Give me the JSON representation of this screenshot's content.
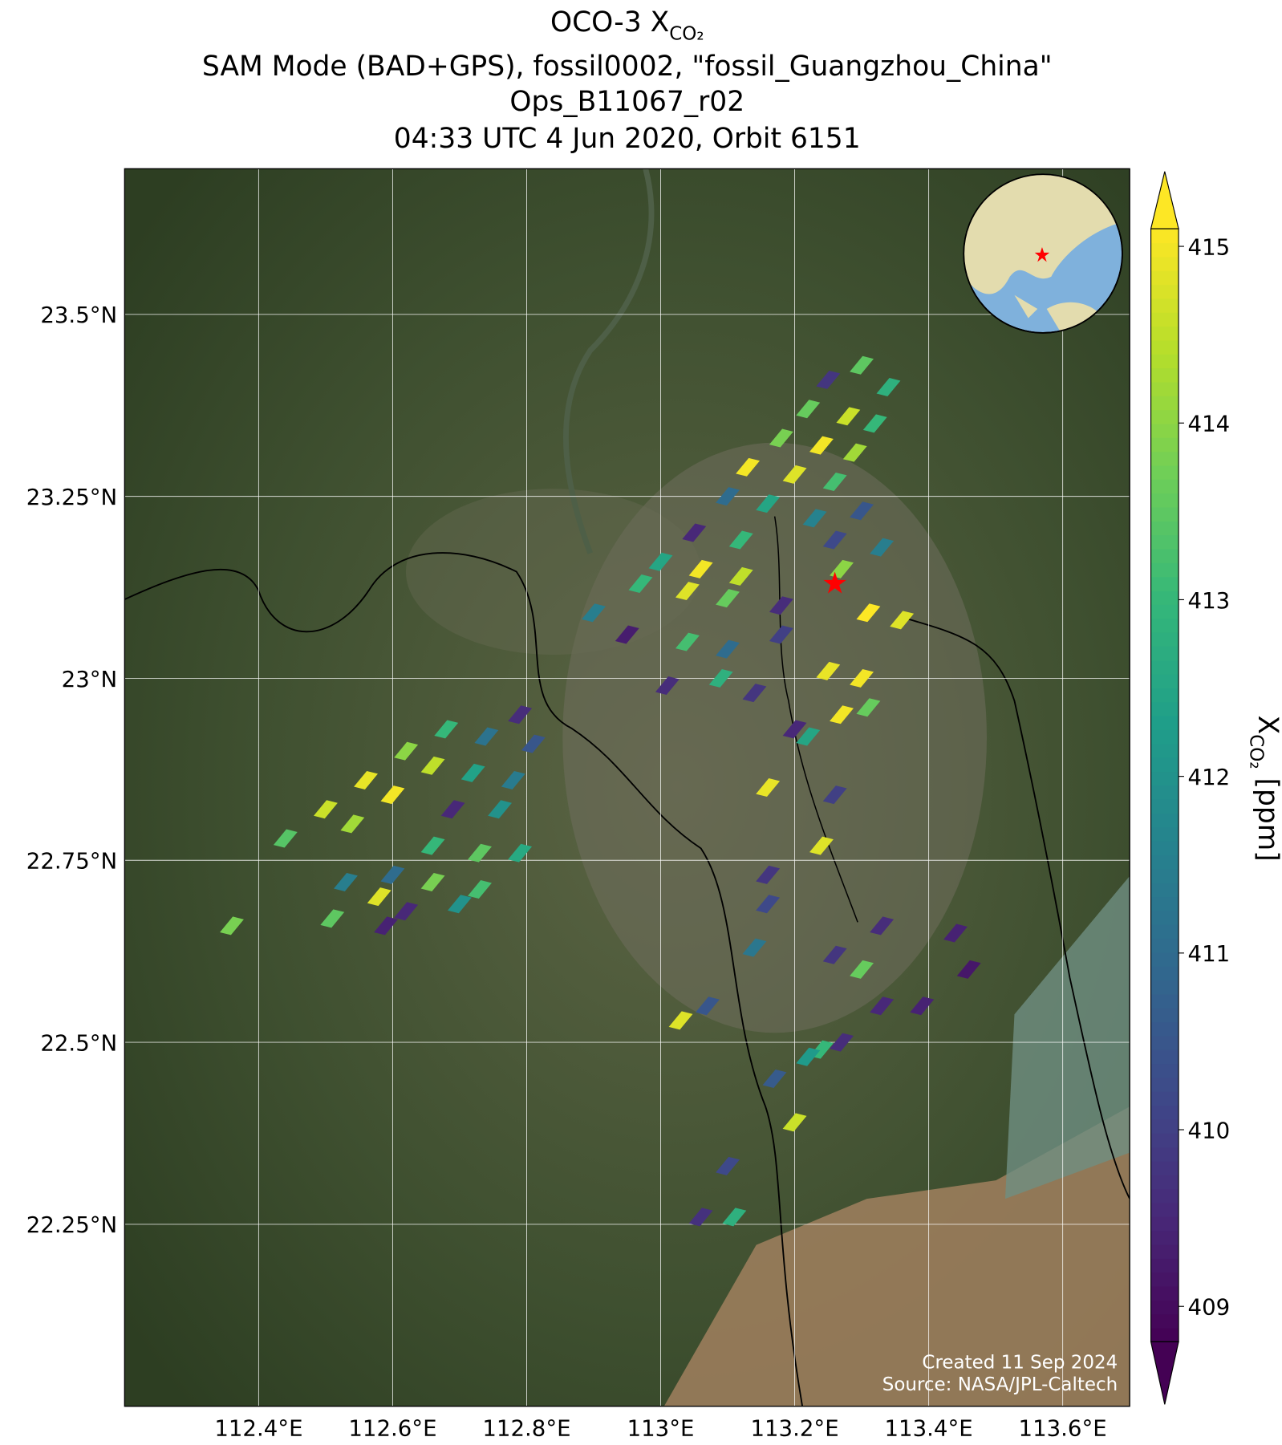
{
  "chart_data": {
    "type": "map",
    "title_prefix": "OCO-3 X",
    "title_subscript": "CO₂",
    "title_lines": [
      "SAM Mode (BAD+GPS), fossil0002, \"fossil_Guangzhou_China\"",
      "Ops_B11067_r02",
      "04:33 UTC 4 Jun 2020, Orbit 6151"
    ],
    "xlim": [
      112.2,
      113.7
    ],
    "ylim": [
      22.0,
      23.7
    ],
    "xticks": [
      {
        "value": 112.4,
        "label": "112.4°E"
      },
      {
        "value": 112.6,
        "label": "112.6°E"
      },
      {
        "value": 112.8,
        "label": "112.8°E"
      },
      {
        "value": 113.0,
        "label": "113°E"
      },
      {
        "value": 113.2,
        "label": "113.2°E"
      },
      {
        "value": 113.4,
        "label": "113.4°E"
      },
      {
        "value": 113.6,
        "label": "113.6°E"
      }
    ],
    "yticks": [
      {
        "value": 22.25,
        "label": "22.25°N"
      },
      {
        "value": 22.5,
        "label": "22.5°N"
      },
      {
        "value": 22.75,
        "label": "22.75°N"
      },
      {
        "value": 23.0,
        "label": "23°N"
      },
      {
        "value": 23.25,
        "label": "23.25°N"
      },
      {
        "value": 23.5,
        "label": "23.5°N"
      }
    ],
    "grid": true,
    "colormap": "viridis",
    "clim": [
      408.8,
      415.1
    ],
    "cticks": [
      409,
      410,
      411,
      412,
      413,
      414,
      415
    ],
    "colorbar_label_prefix": "X",
    "colorbar_label_subscript": "CO₂",
    "colorbar_label_suffix": " [ppm]",
    "target": {
      "lon": 113.26,
      "lat": 23.13
    },
    "credits": [
      "Created 11 Sep 2024",
      "Source: NASA/JPL-Caltech"
    ],
    "soundings": [
      {
        "lon": 113.3,
        "lat": 23.43,
        "xco2": 413.5
      },
      {
        "lon": 113.25,
        "lat": 23.41,
        "xco2": 409.8
      },
      {
        "lon": 113.34,
        "lat": 23.4,
        "xco2": 412.8
      },
      {
        "lon": 113.22,
        "lat": 23.37,
        "xco2": 413.6
      },
      {
        "lon": 113.28,
        "lat": 23.36,
        "xco2": 414.6
      },
      {
        "lon": 113.32,
        "lat": 23.35,
        "xco2": 413.0
      },
      {
        "lon": 113.18,
        "lat": 23.33,
        "xco2": 413.8
      },
      {
        "lon": 113.24,
        "lat": 23.32,
        "xco2": 415.0
      },
      {
        "lon": 113.29,
        "lat": 23.31,
        "xco2": 414.2
      },
      {
        "lon": 113.13,
        "lat": 23.29,
        "xco2": 415.0
      },
      {
        "lon": 113.2,
        "lat": 23.28,
        "xco2": 414.8
      },
      {
        "lon": 113.26,
        "lat": 23.27,
        "xco2": 413.2
      },
      {
        "lon": 113.1,
        "lat": 23.25,
        "xco2": 411.0
      },
      {
        "lon": 113.16,
        "lat": 23.24,
        "xco2": 412.5
      },
      {
        "lon": 113.23,
        "lat": 23.22,
        "xco2": 411.6
      },
      {
        "lon": 113.3,
        "lat": 23.23,
        "xco2": 410.5
      },
      {
        "lon": 113.05,
        "lat": 23.2,
        "xco2": 409.5
      },
      {
        "lon": 113.12,
        "lat": 23.19,
        "xco2": 413.0
      },
      {
        "lon": 113.26,
        "lat": 23.19,
        "xco2": 410.2
      },
      {
        "lon": 113.33,
        "lat": 23.18,
        "xco2": 411.5
      },
      {
        "lon": 113.0,
        "lat": 23.16,
        "xco2": 412.5
      },
      {
        "lon": 113.06,
        "lat": 23.15,
        "xco2": 415.0
      },
      {
        "lon": 113.12,
        "lat": 23.14,
        "xco2": 414.5
      },
      {
        "lon": 113.27,
        "lat": 23.15,
        "xco2": 414.0
      },
      {
        "lon": 112.97,
        "lat": 23.13,
        "xco2": 413.0
      },
      {
        "lon": 113.04,
        "lat": 23.12,
        "xco2": 414.8
      },
      {
        "lon": 113.1,
        "lat": 23.11,
        "xco2": 413.6
      },
      {
        "lon": 113.18,
        "lat": 23.1,
        "xco2": 409.6
      },
      {
        "lon": 113.31,
        "lat": 23.09,
        "xco2": 415.1
      },
      {
        "lon": 113.36,
        "lat": 23.08,
        "xco2": 414.8
      },
      {
        "lon": 112.9,
        "lat": 23.09,
        "xco2": 411.5
      },
      {
        "lon": 112.95,
        "lat": 23.06,
        "xco2": 409.3
      },
      {
        "lon": 113.04,
        "lat": 23.05,
        "xco2": 413.2
      },
      {
        "lon": 113.1,
        "lat": 23.04,
        "xco2": 411.0
      },
      {
        "lon": 113.18,
        "lat": 23.06,
        "xco2": 410.0
      },
      {
        "lon": 113.25,
        "lat": 23.01,
        "xco2": 414.9
      },
      {
        "lon": 113.3,
        "lat": 23.0,
        "xco2": 415.0
      },
      {
        "lon": 113.01,
        "lat": 22.99,
        "xco2": 409.6
      },
      {
        "lon": 113.09,
        "lat": 23.0,
        "xco2": 412.8
      },
      {
        "lon": 113.14,
        "lat": 22.98,
        "xco2": 409.8
      },
      {
        "lon": 113.27,
        "lat": 22.95,
        "xco2": 415.0
      },
      {
        "lon": 113.31,
        "lat": 22.96,
        "xco2": 413.6
      },
      {
        "lon": 113.2,
        "lat": 22.93,
        "xco2": 409.5
      },
      {
        "lon": 113.22,
        "lat": 22.92,
        "xco2": 412.5
      },
      {
        "lon": 113.16,
        "lat": 22.85,
        "xco2": 414.9
      },
      {
        "lon": 113.26,
        "lat": 22.84,
        "xco2": 410.0
      },
      {
        "lon": 113.24,
        "lat": 22.77,
        "xco2": 414.8
      },
      {
        "lon": 113.16,
        "lat": 22.73,
        "xco2": 409.8
      },
      {
        "lon": 113.16,
        "lat": 22.69,
        "xco2": 410.2
      },
      {
        "lon": 112.44,
        "lat": 22.78,
        "xco2": 413.4
      },
      {
        "lon": 112.5,
        "lat": 22.82,
        "xco2": 414.6
      },
      {
        "lon": 112.56,
        "lat": 22.86,
        "xco2": 414.9
      },
      {
        "lon": 112.62,
        "lat": 22.9,
        "xco2": 414.0
      },
      {
        "lon": 112.68,
        "lat": 22.93,
        "xco2": 413.0
      },
      {
        "lon": 112.54,
        "lat": 22.8,
        "xco2": 414.2
      },
      {
        "lon": 112.6,
        "lat": 22.84,
        "xco2": 415.0
      },
      {
        "lon": 112.66,
        "lat": 22.88,
        "xco2": 414.5
      },
      {
        "lon": 112.74,
        "lat": 22.92,
        "xco2": 411.2
      },
      {
        "lon": 112.79,
        "lat": 22.95,
        "xco2": 409.6
      },
      {
        "lon": 112.72,
        "lat": 22.87,
        "xco2": 412.4
      },
      {
        "lon": 112.78,
        "lat": 22.86,
        "xco2": 411.4
      },
      {
        "lon": 112.69,
        "lat": 22.82,
        "xco2": 409.5
      },
      {
        "lon": 112.76,
        "lat": 22.82,
        "xco2": 412.0
      },
      {
        "lon": 112.81,
        "lat": 22.91,
        "xco2": 410.5
      },
      {
        "lon": 112.66,
        "lat": 22.77,
        "xco2": 413.0
      },
      {
        "lon": 112.73,
        "lat": 22.76,
        "xco2": 413.5
      },
      {
        "lon": 112.79,
        "lat": 22.76,
        "xco2": 412.6
      },
      {
        "lon": 112.6,
        "lat": 22.73,
        "xco2": 411.0
      },
      {
        "lon": 112.66,
        "lat": 22.72,
        "xco2": 413.8
      },
      {
        "lon": 112.73,
        "lat": 22.71,
        "xco2": 413.2
      },
      {
        "lon": 112.53,
        "lat": 22.72,
        "xco2": 411.5
      },
      {
        "lon": 112.58,
        "lat": 22.7,
        "xco2": 414.8
      },
      {
        "lon": 112.62,
        "lat": 22.68,
        "xco2": 409.5
      },
      {
        "lon": 112.7,
        "lat": 22.69,
        "xco2": 412.0
      },
      {
        "lon": 112.51,
        "lat": 22.67,
        "xco2": 413.5
      },
      {
        "lon": 112.59,
        "lat": 22.66,
        "xco2": 409.4
      },
      {
        "lon": 113.14,
        "lat": 22.63,
        "xco2": 411.3
      },
      {
        "lon": 113.26,
        "lat": 22.62,
        "xco2": 409.8
      },
      {
        "lon": 113.3,
        "lat": 22.6,
        "xco2": 413.6
      },
      {
        "lon": 113.33,
        "lat": 22.66,
        "xco2": 409.6
      },
      {
        "lon": 113.44,
        "lat": 22.65,
        "xco2": 409.4
      },
      {
        "lon": 113.46,
        "lat": 22.6,
        "xco2": 409.2
      },
      {
        "lon": 113.33,
        "lat": 22.55,
        "xco2": 409.5
      },
      {
        "lon": 113.39,
        "lat": 22.55,
        "xco2": 409.4
      },
      {
        "lon": 113.07,
        "lat": 22.55,
        "xco2": 410.5
      },
      {
        "lon": 113.03,
        "lat": 22.53,
        "xco2": 414.8
      },
      {
        "lon": 113.24,
        "lat": 22.49,
        "xco2": 413.0
      },
      {
        "lon": 113.27,
        "lat": 22.5,
        "xco2": 409.6
      },
      {
        "lon": 113.22,
        "lat": 22.48,
        "xco2": 412.2
      },
      {
        "lon": 113.17,
        "lat": 22.45,
        "xco2": 410.6
      },
      {
        "lon": 113.2,
        "lat": 22.39,
        "xco2": 414.6
      },
      {
        "lon": 113.1,
        "lat": 22.33,
        "xco2": 410.2
      },
      {
        "lon": 113.06,
        "lat": 22.26,
        "xco2": 409.7
      },
      {
        "lon": 113.11,
        "lat": 22.26,
        "xco2": 412.8
      },
      {
        "lon": 112.36,
        "lat": 22.66,
        "xco2": 413.8
      }
    ]
  }
}
